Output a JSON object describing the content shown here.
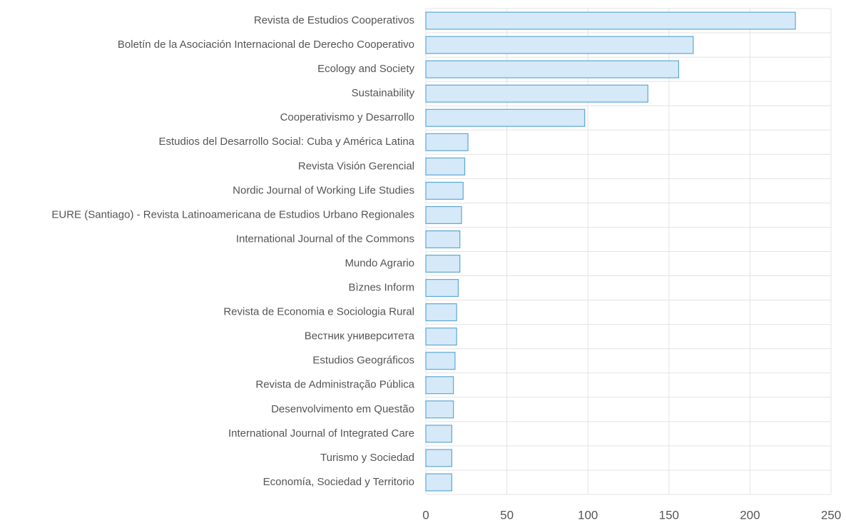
{
  "chart_data": {
    "type": "bar",
    "orientation": "horizontal",
    "categories": [
      "Revista de Estudios Cooperativos",
      "Boletín de la Asociación Internacional de Derecho Cooperativo",
      "Ecology and Society",
      "Sustainability",
      "Cooperativismo y Desarrollo",
      "Estudios del Desarrollo Social: Cuba y América Latina",
      "Revista Visión Gerencial",
      "Nordic Journal of Working Life Studies",
      "EURE (Santiago) - Revista Latinoamericana de Estudios Urbano Regionales",
      "International Journal of the Commons",
      "Mundo Agrario",
      "Bìznes Inform",
      "Revista de Economia e Sociologia Rural",
      "Вестник университета",
      "Estudios Geográficos",
      "Revista de Administração Pública",
      "Desenvolvimento em Questão",
      "International Journal of Integrated Care",
      "Turismo y Sociedad",
      "Economía, Sociedad y Territorio"
    ],
    "values": [
      228,
      165,
      156,
      137,
      98,
      26,
      24,
      23,
      22,
      21,
      21,
      20,
      19,
      19,
      18,
      17,
      17,
      16,
      16,
      16
    ],
    "color": "#d6e9f8",
    "edge_color": "#5ba8d4",
    "xlim": [
      0,
      250
    ],
    "xticks": [
      0,
      50,
      100,
      150,
      200,
      250
    ],
    "grid": true
  }
}
